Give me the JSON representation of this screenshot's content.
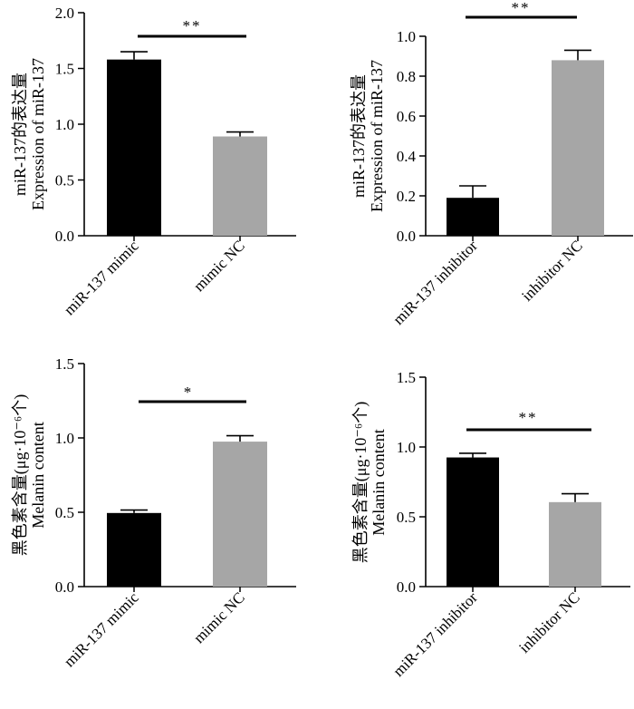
{
  "chart_data": [
    {
      "type": "bar",
      "categories": [
        "miR-137 mimic",
        "mimic NC"
      ],
      "values": [
        1.58,
        0.89
      ],
      "errors": [
        0.07,
        0.04
      ],
      "colors": [
        "#000000",
        "#a6a6a6"
      ],
      "ylabel": [
        "miR-137的表达量",
        "Expression of miR-137"
      ],
      "ylim": [
        0,
        2.0
      ],
      "yticks": [
        "0.0",
        "0.5",
        "1.0",
        "1.5",
        "2.0"
      ],
      "significance": "**"
    },
    {
      "type": "bar",
      "categories": [
        "miR-137 inhibitor",
        "inhibitor NC"
      ],
      "values": [
        0.19,
        0.88
      ],
      "errors": [
        0.06,
        0.05
      ],
      "colors": [
        "#000000",
        "#a6a6a6"
      ],
      "ylabel": [
        "miR-137的表达量",
        "Expression of miR-137"
      ],
      "ylim": [
        0,
        1.0
      ],
      "yticks": [
        "0.0",
        "0.2",
        "0.4",
        "0.6",
        "0.8",
        "1.0"
      ],
      "significance": "**"
    },
    {
      "type": "bar",
      "categories": [
        "miR-137 mimic",
        "mimic NC"
      ],
      "values": [
        0.495,
        0.975
      ],
      "errors": [
        0.02,
        0.04
      ],
      "colors": [
        "#000000",
        "#a6a6a6"
      ],
      "ylabel": [
        "黑色素含量(μg·10⁻⁶个)",
        "Melanin content"
      ],
      "ylim": [
        0,
        1.5
      ],
      "yticks": [
        "0.0",
        "0.5",
        "1.0",
        "1.5"
      ],
      "significance": "*"
    },
    {
      "type": "bar",
      "categories": [
        "miR-137 inhibitor",
        "inhibitor NC"
      ],
      "values": [
        0.925,
        0.605
      ],
      "errors": [
        0.03,
        0.06
      ],
      "colors": [
        "#000000",
        "#a6a6a6"
      ],
      "ylabel": [
        "黑色素含量(μg·10⁻⁶个)",
        "Melanin content"
      ],
      "ylim": [
        0,
        1.5
      ],
      "yticks": [
        "0.0",
        "0.5",
        "1.0",
        "1.5"
      ],
      "significance": "**"
    }
  ]
}
